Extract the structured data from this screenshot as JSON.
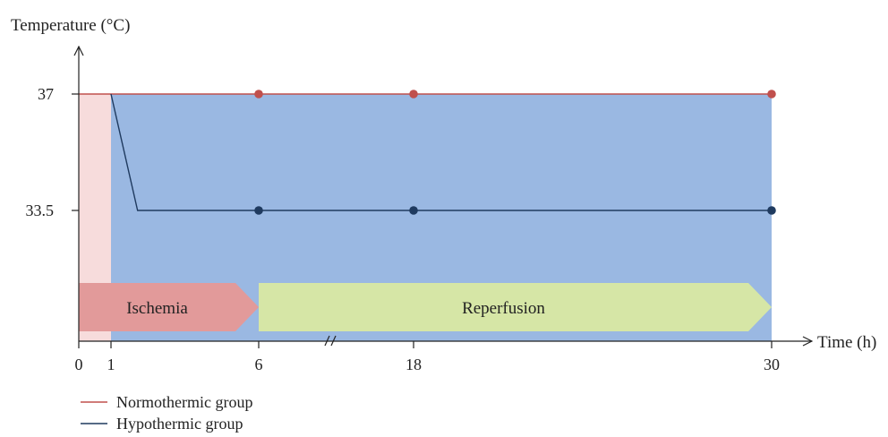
{
  "chart_data": {
    "type": "line",
    "ylabel": "Temperature (°C)",
    "xlabel": "Time (h)",
    "x_ticks": [
      {
        "value": 0,
        "label": "0"
      },
      {
        "value": 1,
        "label": "1"
      },
      {
        "value": 6,
        "label": "6"
      },
      {
        "value": 18,
        "label": "18"
      },
      {
        "value": 30,
        "label": "30"
      }
    ],
    "y_ticks": [
      {
        "value": 37,
        "label": "37"
      },
      {
        "value": 33.5,
        "label": "33.5"
      }
    ],
    "x_axis_break_between": [
      6,
      18
    ],
    "series": [
      {
        "name": "Normothermic group",
        "color": "#c0504d",
        "line": [
          [
            0,
            37
          ],
          [
            30,
            37
          ]
        ],
        "markers": [
          [
            6,
            37
          ],
          [
            18,
            37
          ],
          [
            30,
            37
          ]
        ]
      },
      {
        "name": "Hypothermic group",
        "color": "#1f3a5f",
        "line": [
          [
            1,
            37
          ],
          [
            1.9,
            33.5
          ],
          [
            30,
            33.5
          ]
        ],
        "markers": [
          [
            6,
            33.5
          ],
          [
            18,
            33.5
          ],
          [
            30,
            33.5
          ]
        ]
      }
    ],
    "shaded_regions": [
      {
        "x": [
          0,
          1
        ],
        "color": "#f7dcdc"
      },
      {
        "x": [
          1,
          30
        ],
        "color": "#9ab8e2"
      }
    ],
    "phases": [
      {
        "label": "Ischemia",
        "x": [
          0,
          6
        ],
        "color": "#e29a9a"
      },
      {
        "label": "Reperfusion",
        "x": [
          6,
          30
        ],
        "color": "#d6e6a6"
      }
    ],
    "legend_placement": "bottom-left"
  }
}
